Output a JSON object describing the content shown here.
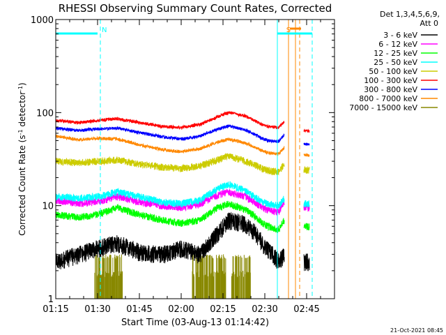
{
  "chart_data": {
    "type": "line",
    "title": "RHESSI Observing Summary Count Rates, Corrected",
    "xlabel": "Start Time (03-Aug-13 01:14:42)",
    "ylabel_parts": [
      "Corrected Count Rate (s",
      "-1",
      " detector",
      "-1",
      ")"
    ],
    "x_unit": "minutes after 01:15",
    "xlim": [
      0,
      100
    ],
    "ylim": [
      1,
      1000
    ],
    "yscale": "log",
    "x_ticks": [
      {
        "t": 0,
        "label": "01:15"
      },
      {
        "t": 15,
        "label": "01:30"
      },
      {
        "t": 30,
        "label": "01:45"
      },
      {
        "t": 45,
        "label": "02:00"
      },
      {
        "t": 60,
        "label": "02:15"
      },
      {
        "t": 75,
        "label": "02:30"
      },
      {
        "t": 90,
        "label": "02:45"
      }
    ],
    "y_ticks": [
      {
        "v": 1,
        "label": "1"
      },
      {
        "v": 10,
        "label": "10"
      },
      {
        "v": 100,
        "label": "100"
      },
      {
        "v": 1000,
        "label": "1000"
      }
    ],
    "legend": {
      "position": "right",
      "header": [
        "Det 1,3,4,5,6,9,",
        "Att 0"
      ],
      "entries": [
        {
          "label": "3 - 6 keV",
          "color": "#000000"
        },
        {
          "label": "6 - 12 keV",
          "color": "#ff00ff"
        },
        {
          "label": "12 - 25 keV",
          "color": "#00ff00"
        },
        {
          "label": "25 - 50 keV",
          "color": "#00ffff"
        },
        {
          "label": "50 - 100 keV",
          "color": "#cccc00"
        },
        {
          "label": "100 - 300 keV",
          "color": "#ff0000"
        },
        {
          "label": "300 - 800 keV",
          "color": "#0000ff"
        },
        {
          "label": "800 - 7000 keV",
          "color": "#ff8800"
        },
        {
          "label": "7000 - 15000 keV",
          "color": "#888800"
        }
      ]
    },
    "series": [
      {
        "name": "3 - 6 keV",
        "color": "#000000",
        "points": [
          [
            0,
            2.5
          ],
          [
            8,
            3.0
          ],
          [
            15,
            3.5
          ],
          [
            22,
            4.0
          ],
          [
            30,
            3.2
          ],
          [
            38,
            3.0
          ],
          [
            45,
            3.5
          ],
          [
            52,
            3.0
          ],
          [
            58,
            5.0
          ],
          [
            62,
            7.0
          ],
          [
            68,
            6.5
          ],
          [
            72,
            5.0
          ],
          [
            74,
            4.0
          ],
          [
            76,
            3.5
          ],
          [
            80,
            2.5
          ],
          [
            82,
            3.0
          ]
        ],
        "after": [
          [
            89,
            2.5
          ],
          [
            91,
            2.5
          ]
        ]
      },
      {
        "name": "6 - 12 keV",
        "color": "#ff00ff",
        "points": [
          [
            0,
            11.5
          ],
          [
            8,
            10.5
          ],
          [
            15,
            11.0
          ],
          [
            22,
            12.5
          ],
          [
            30,
            11.0
          ],
          [
            38,
            10.0
          ],
          [
            45,
            9.5
          ],
          [
            52,
            10.5
          ],
          [
            58,
            13.0
          ],
          [
            62,
            14.0
          ],
          [
            68,
            12.5
          ],
          [
            72,
            10.5
          ],
          [
            74,
            9.5
          ],
          [
            76,
            9.0
          ],
          [
            80,
            8.5
          ],
          [
            82,
            11.0
          ]
        ],
        "after": [
          [
            89,
            9.5
          ],
          [
            91,
            9.5
          ]
        ]
      },
      {
        "name": "12 - 25 keV",
        "color": "#00ff00",
        "points": [
          [
            0,
            8.0
          ],
          [
            8,
            7.5
          ],
          [
            15,
            8.0
          ],
          [
            22,
            9.5
          ],
          [
            30,
            8.0
          ],
          [
            38,
            7.0
          ],
          [
            45,
            6.5
          ],
          [
            52,
            7.0
          ],
          [
            58,
            9.5
          ],
          [
            62,
            10.5
          ],
          [
            68,
            9.0
          ],
          [
            72,
            7.5
          ],
          [
            74,
            6.5
          ],
          [
            76,
            6.0
          ],
          [
            80,
            5.5
          ],
          [
            82,
            7.0
          ]
        ],
        "after": [
          [
            89,
            6.0
          ],
          [
            91,
            6.0
          ]
        ]
      },
      {
        "name": "25 - 50 keV",
        "color": "#00ffff",
        "points": [
          [
            0,
            12.5
          ],
          [
            8,
            12.0
          ],
          [
            15,
            12.5
          ],
          [
            22,
            14.0
          ],
          [
            30,
            12.5
          ],
          [
            38,
            11.0
          ],
          [
            45,
            10.5
          ],
          [
            52,
            11.5
          ],
          [
            58,
            15.0
          ],
          [
            62,
            17.0
          ],
          [
            68,
            14.5
          ],
          [
            72,
            12.0
          ],
          [
            74,
            11.0
          ],
          [
            76,
            10.5
          ],
          [
            80,
            10.0
          ],
          [
            82,
            12.0
          ]
        ],
        "after": [
          [
            89,
            10.5
          ],
          [
            91,
            10.5
          ]
        ]
      },
      {
        "name": "50 - 100 keV",
        "color": "#cccc00",
        "points": [
          [
            0,
            30
          ],
          [
            8,
            29
          ],
          [
            15,
            30
          ],
          [
            22,
            31
          ],
          [
            30,
            28
          ],
          [
            38,
            26
          ],
          [
            45,
            25
          ],
          [
            52,
            27
          ],
          [
            58,
            31
          ],
          [
            62,
            34
          ],
          [
            68,
            30
          ],
          [
            72,
            27
          ],
          [
            74,
            25
          ],
          [
            76,
            24
          ],
          [
            80,
            23
          ],
          [
            82,
            28
          ]
        ],
        "after": [
          [
            89,
            24
          ],
          [
            91,
            24
          ]
        ]
      },
      {
        "name": "100 - 300 keV",
        "color": "#ff0000",
        "points": [
          [
            0,
            82
          ],
          [
            8,
            78
          ],
          [
            15,
            82
          ],
          [
            22,
            86
          ],
          [
            30,
            78
          ],
          [
            38,
            71
          ],
          [
            45,
            69
          ],
          [
            52,
            75
          ],
          [
            58,
            90
          ],
          [
            62,
            100
          ],
          [
            68,
            92
          ],
          [
            72,
            80
          ],
          [
            74,
            74
          ],
          [
            76,
            71
          ],
          [
            80,
            69
          ],
          [
            82,
            80
          ]
        ],
        "after": [
          [
            89,
            63
          ],
          [
            91,
            63
          ]
        ]
      },
      {
        "name": "300 - 800 keV",
        "color": "#0000ff",
        "points": [
          [
            0,
            68
          ],
          [
            8,
            64
          ],
          [
            15,
            67
          ],
          [
            22,
            68
          ],
          [
            30,
            61
          ],
          [
            38,
            55
          ],
          [
            45,
            52
          ],
          [
            52,
            56
          ],
          [
            58,
            66
          ],
          [
            62,
            72
          ],
          [
            68,
            65
          ],
          [
            72,
            57
          ],
          [
            74,
            53
          ],
          [
            76,
            50
          ],
          [
            80,
            49
          ],
          [
            82,
            58
          ]
        ],
        "after": [
          [
            89,
            46
          ],
          [
            91,
            46
          ]
        ]
      },
      {
        "name": "800 - 7000 keV",
        "color": "#ff8800",
        "points": [
          [
            0,
            56
          ],
          [
            8,
            51
          ],
          [
            15,
            53
          ],
          [
            22,
            52
          ],
          [
            30,
            45
          ],
          [
            38,
            40
          ],
          [
            45,
            38
          ],
          [
            52,
            41
          ],
          [
            58,
            48
          ],
          [
            62,
            52
          ],
          [
            68,
            47
          ],
          [
            72,
            42
          ],
          [
            74,
            39
          ],
          [
            76,
            37
          ],
          [
            80,
            36
          ],
          [
            82,
            42
          ]
        ],
        "after": [
          [
            89,
            35
          ],
          [
            91,
            35
          ]
        ]
      }
    ],
    "bursts": [
      {
        "name": "7000 - 15000 keV",
        "color": "#888800",
        "segments": [
          [
            14,
            24
          ],
          [
            49,
            61
          ],
          [
            63,
            70
          ]
        ]
      }
    ],
    "annotations": {
      "solid_lines": [
        {
          "t": 0,
          "color": "#00ffff"
        },
        {
          "t": 79.5,
          "color": "#00ffff"
        },
        {
          "t": 83.5,
          "color": "#ff8800"
        },
        {
          "t": 86,
          "color": "#ff8800"
        }
      ],
      "dashed_lines": [
        {
          "t": 16,
          "color": "#00ffff"
        },
        {
          "t": 87.5,
          "color": "#ff8800"
        },
        {
          "t": 92,
          "color": "#00ffff"
        }
      ],
      "top_bars": [
        {
          "t0": 0,
          "t1": 15,
          "color": "#00ffff",
          "label": "N"
        },
        {
          "t0": 79.5,
          "t1": 92,
          "color": "#00ffff",
          "label": "S"
        },
        {
          "t0": 84,
          "t1": 88,
          "color": "#ff8800",
          "label": ""
        }
      ]
    },
    "timestamp": "21-Oct-2021 08:45"
  }
}
